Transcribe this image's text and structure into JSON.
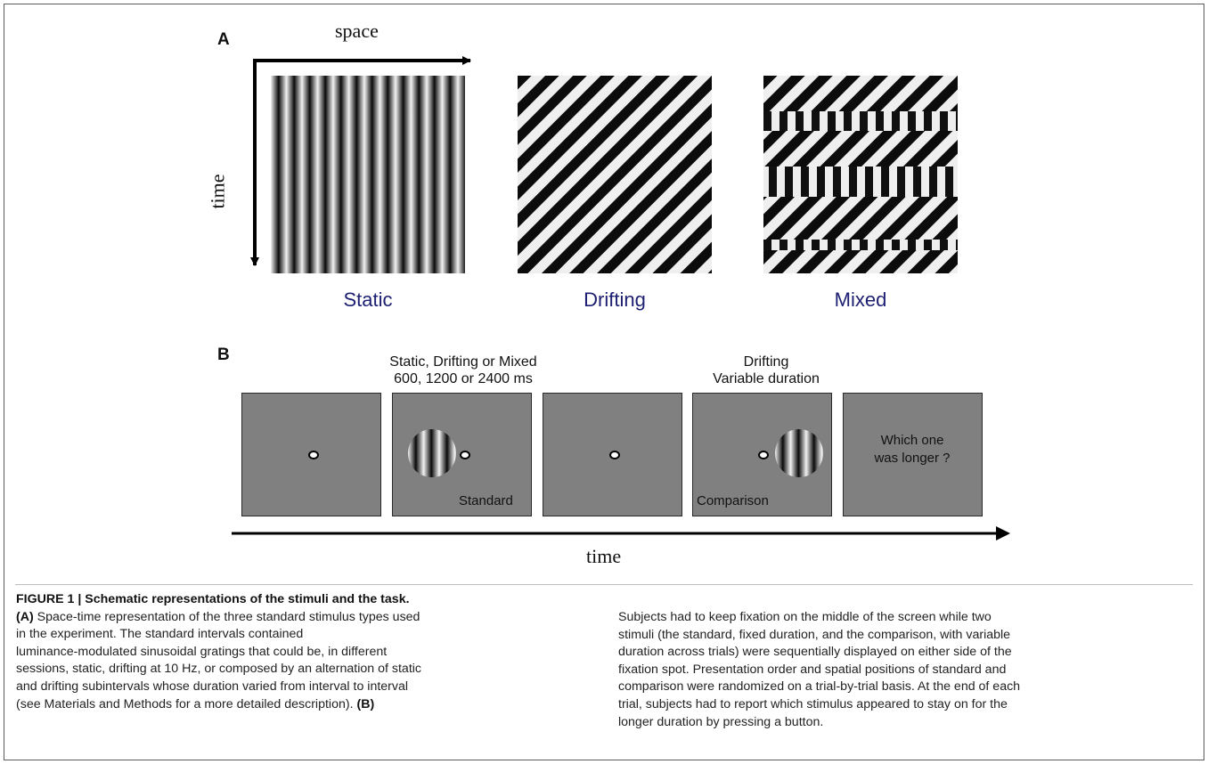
{
  "panel_a": {
    "letter": "A",
    "axis_space": "space",
    "axis_time": "time",
    "stimuli": [
      {
        "label": "Static"
      },
      {
        "label": "Drifting"
      },
      {
        "label": "Mixed"
      }
    ]
  },
  "panel_b": {
    "letter": "B",
    "header_standard_line1": "Static, Drifting or Mixed",
    "header_standard_line2": "600, 1200 or 2400 ms",
    "header_comparison_line1": "Drifting",
    "header_comparison_line2": "Variable duration",
    "standard_label": "Standard",
    "comparison_label": "Comparison",
    "question_line1": "Which one",
    "question_line2": "was longer ?",
    "time_label": "time"
  },
  "caption": {
    "title": "FIGURE 1 | Schematic representations of the stimuli and the task.",
    "left_a_tag": "(A)",
    "left_lines": [
      " Space-time representation of the three standard stimulus types used",
      "in the experiment. The standard intervals contained",
      "luminance-modulated sinusoidal gratings that could be, in different",
      "sessions, static, drifting at 10 Hz, or composed by an alternation of static",
      "and drifting subintervals whose duration varied from interval to interval",
      "(see Materials and Methods for a more detailed description). "
    ],
    "left_b_tag": "(B)",
    "right_lines": [
      "Subjects had to keep fixation on the middle of the screen while two",
      "stimuli (the standard, fixed duration, and the comparison, with variable",
      "duration across trials) were sequentially displayed on either side of the",
      "fixation spot. Presentation order and spatial positions of standard and",
      "comparison were randomized on a trial-by-trial basis. At the end of each",
      "trial, subjects had to report which stimulus appeared to stay on for the",
      "longer duration by pressing a button."
    ]
  }
}
